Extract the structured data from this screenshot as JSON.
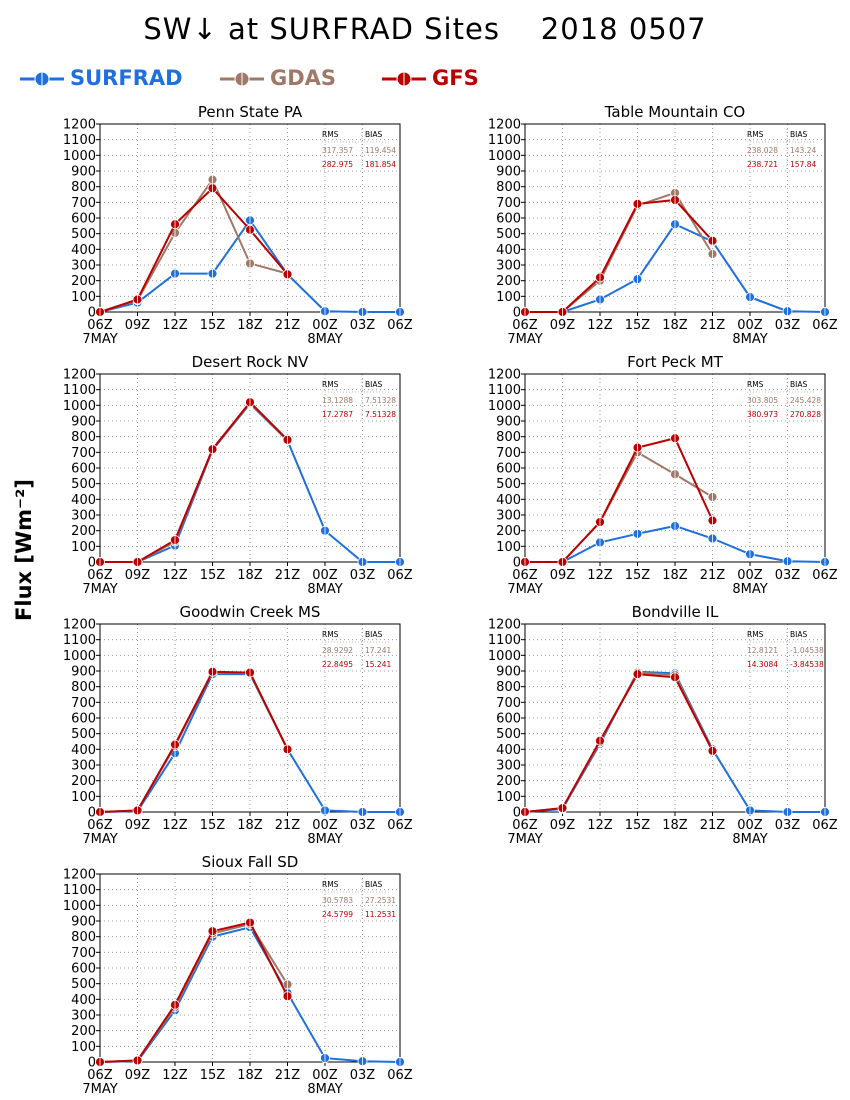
{
  "title": "SW↓ at SURFRAD Sites    2018 0507",
  "y_axis_label": "Flux [Wm⁻²]",
  "legend": [
    {
      "name": "SURFRAD",
      "color": "#1f6fdc"
    },
    {
      "name": "GDAS",
      "color": "#a07868"
    },
    {
      "name": "GFS",
      "color": "#bb0000"
    }
  ],
  "stats_headers": {
    "rms": "RMS",
    "bias": "BIAS"
  },
  "chart_data": [
    {
      "type": "line",
      "title": "Penn State PA",
      "x": [
        "06Z",
        "09Z",
        "12Z",
        "15Z",
        "18Z",
        "21Z",
        "00Z",
        "03Z",
        "06Z"
      ],
      "date_labels": [
        {
          "at": "06Z",
          "label": "7MAY"
        },
        {
          "at": "00Z",
          "label": "8MAY"
        }
      ],
      "ylim": [
        0,
        1200
      ],
      "yticks": [
        0,
        100,
        200,
        300,
        400,
        500,
        600,
        700,
        800,
        900,
        1000,
        1100,
        1200
      ],
      "grid": true,
      "series": [
        {
          "name": "SURFRAD",
          "values": [
            0,
            60,
            245,
            245,
            585,
            240,
            5,
            0,
            0
          ]
        },
        {
          "name": "GDAS",
          "values": [
            0,
            75,
            505,
            845,
            310,
            245,
            null,
            null,
            null
          ]
        },
        {
          "name": "GFS",
          "values": [
            0,
            80,
            560,
            790,
            525,
            240,
            null,
            null,
            null
          ]
        }
      ],
      "stats": {
        "GDAS": {
          "rms": "317.357",
          "bias": "119.454"
        },
        "GFS": {
          "rms": "282.975",
          "bias": "181.854"
        }
      }
    },
    {
      "type": "line",
      "title": "Table Mountain CO",
      "x": [
        "06Z",
        "09Z",
        "12Z",
        "15Z",
        "18Z",
        "21Z",
        "00Z",
        "03Z",
        "06Z"
      ],
      "date_labels": [
        {
          "at": "06Z",
          "label": "7MAY"
        },
        {
          "at": "00Z",
          "label": "8MAY"
        }
      ],
      "ylim": [
        0,
        1200
      ],
      "yticks": [
        0,
        100,
        200,
        300,
        400,
        500,
        600,
        700,
        800,
        900,
        1000,
        1100,
        1200
      ],
      "grid": true,
      "series": [
        {
          "name": "SURFRAD",
          "values": [
            0,
            0,
            80,
            210,
            560,
            450,
            95,
            5,
            0
          ]
        },
        {
          "name": "GDAS",
          "values": [
            0,
            0,
            200,
            680,
            760,
            370,
            null,
            null,
            null
          ]
        },
        {
          "name": "GFS",
          "values": [
            0,
            0,
            220,
            690,
            715,
            455,
            null,
            null,
            null
          ]
        }
      ],
      "stats": {
        "GDAS": {
          "rms": "238.028",
          "bias": "143.24"
        },
        "GFS": {
          "rms": "238.721",
          "bias": "157.84"
        }
      }
    },
    {
      "type": "line",
      "title": "Desert Rock NV",
      "x": [
        "06Z",
        "09Z",
        "12Z",
        "15Z",
        "18Z",
        "21Z",
        "00Z",
        "03Z",
        "06Z"
      ],
      "date_labels": [
        {
          "at": "06Z",
          "label": "7MAY"
        },
        {
          "at": "00Z",
          "label": "8MAY"
        }
      ],
      "ylim": [
        0,
        1200
      ],
      "yticks": [
        0,
        100,
        200,
        300,
        400,
        500,
        600,
        700,
        800,
        900,
        1000,
        1100,
        1200
      ],
      "grid": true,
      "series": [
        {
          "name": "SURFRAD",
          "values": [
            0,
            0,
            105,
            715,
            1010,
            775,
            200,
            0,
            0
          ]
        },
        {
          "name": "GDAS",
          "values": [
            0,
            0,
            130,
            720,
            1015,
            775,
            null,
            null,
            null
          ]
        },
        {
          "name": "GFS",
          "values": [
            0,
            0,
            140,
            720,
            1020,
            780,
            null,
            null,
            null
          ]
        }
      ],
      "stats": {
        "GDAS": {
          "rms": "13.1288",
          "bias": "7.51328"
        },
        "GFS": {
          "rms": "17.2787",
          "bias": "7.51328"
        }
      }
    },
    {
      "type": "line",
      "title": "Fort Peck MT",
      "x": [
        "06Z",
        "09Z",
        "12Z",
        "15Z",
        "18Z",
        "21Z",
        "00Z",
        "03Z",
        "06Z"
      ],
      "date_labels": [
        {
          "at": "06Z",
          "label": "7MAY"
        },
        {
          "at": "00Z",
          "label": "8MAY"
        }
      ],
      "ylim": [
        0,
        1200
      ],
      "yticks": [
        0,
        100,
        200,
        300,
        400,
        500,
        600,
        700,
        800,
        900,
        1000,
        1100,
        1200
      ],
      "grid": true,
      "series": [
        {
          "name": "SURFRAD",
          "values": [
            0,
            0,
            125,
            180,
            230,
            150,
            50,
            5,
            0
          ]
        },
        {
          "name": "GDAS",
          "values": [
            0,
            0,
            255,
            700,
            560,
            415,
            null,
            null,
            null
          ]
        },
        {
          "name": "GFS",
          "values": [
            0,
            0,
            255,
            730,
            790,
            265,
            null,
            null,
            null
          ]
        }
      ],
      "stats": {
        "GDAS": {
          "rms": "303.805",
          "bias": "245.428"
        },
        "GFS": {
          "rms": "380.973",
          "bias": "270.828"
        }
      }
    },
    {
      "type": "line",
      "title": "Goodwin Creek MS",
      "x": [
        "06Z",
        "09Z",
        "12Z",
        "15Z",
        "18Z",
        "21Z",
        "00Z",
        "03Z",
        "06Z"
      ],
      "date_labels": [
        {
          "at": "06Z",
          "label": "7MAY"
        },
        {
          "at": "00Z",
          "label": "8MAY"
        }
      ],
      "ylim": [
        0,
        1200
      ],
      "yticks": [
        0,
        100,
        200,
        300,
        400,
        500,
        600,
        700,
        800,
        900,
        1000,
        1100,
        1200
      ],
      "grid": true,
      "series": [
        {
          "name": "SURFRAD",
          "values": [
            0,
            5,
            375,
            880,
            880,
            400,
            10,
            0,
            0
          ]
        },
        {
          "name": "GDAS",
          "values": [
            0,
            10,
            420,
            895,
            885,
            400,
            null,
            null,
            null
          ]
        },
        {
          "name": "GFS",
          "values": [
            0,
            10,
            430,
            895,
            890,
            400,
            null,
            null,
            null
          ]
        }
      ],
      "stats": {
        "GDAS": {
          "rms": "28.9292",
          "bias": "17.241"
        },
        "GFS": {
          "rms": "22.8495",
          "bias": "15.241"
        }
      }
    },
    {
      "type": "line",
      "title": "Bondville IL",
      "x": [
        "06Z",
        "09Z",
        "12Z",
        "15Z",
        "18Z",
        "21Z",
        "00Z",
        "03Z",
        "06Z"
      ],
      "date_labels": [
        {
          "at": "06Z",
          "label": "7MAY"
        },
        {
          "at": "00Z",
          "label": "8MAY"
        }
      ],
      "ylim": [
        0,
        1200
      ],
      "yticks": [
        0,
        100,
        200,
        300,
        400,
        500,
        600,
        700,
        800,
        900,
        1000,
        1100,
        1200
      ],
      "grid": true,
      "series": [
        {
          "name": "SURFRAD",
          "values": [
            0,
            20,
            435,
            895,
            885,
            400,
            10,
            0,
            0
          ]
        },
        {
          "name": "GDAS",
          "values": [
            0,
            25,
            445,
            890,
            875,
            390,
            null,
            null,
            null
          ]
        },
        {
          "name": "GFS",
          "values": [
            0,
            25,
            455,
            880,
            860,
            390,
            null,
            null,
            null
          ]
        }
      ],
      "stats": {
        "GDAS": {
          "rms": "12.8121",
          "bias": "-1.04538"
        },
        "GFS": {
          "rms": "14.3084",
          "bias": "-3.84538"
        }
      }
    },
    {
      "type": "line",
      "title": "Sioux Fall SD",
      "x": [
        "06Z",
        "09Z",
        "12Z",
        "15Z",
        "18Z",
        "21Z",
        "00Z",
        "03Z",
        "06Z"
      ],
      "date_labels": [
        {
          "at": "06Z",
          "label": "7MAY"
        },
        {
          "at": "00Z",
          "label": "8MAY"
        }
      ],
      "ylim": [
        0,
        1200
      ],
      "yticks": [
        0,
        100,
        200,
        300,
        400,
        500,
        600,
        700,
        800,
        900,
        1000,
        1100,
        1200
      ],
      "grid": true,
      "series": [
        {
          "name": "SURFRAD",
          "values": [
            0,
            5,
            330,
            800,
            860,
            440,
            25,
            5,
            0
          ]
        },
        {
          "name": "GDAS",
          "values": [
            0,
            10,
            350,
            820,
            880,
            495,
            null,
            null,
            null
          ]
        },
        {
          "name": "GFS",
          "values": [
            0,
            10,
            365,
            835,
            890,
            420,
            null,
            null,
            null
          ]
        }
      ],
      "stats": {
        "GDAS": {
          "rms": "30.5783",
          "bias": "27.2531"
        },
        "GFS": {
          "rms": "24.5799",
          "bias": "11.2531"
        }
      }
    }
  ]
}
